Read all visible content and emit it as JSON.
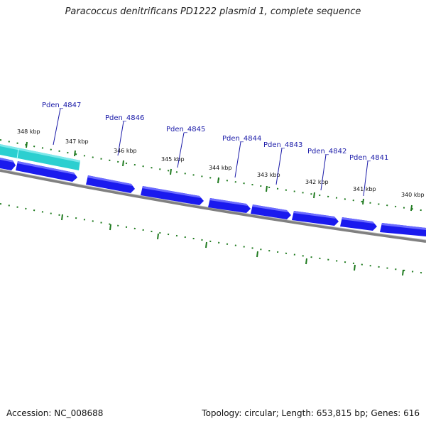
{
  "title": "Paracoccus denitrificans PD1222 plasmid 1, complete sequence",
  "footer": {
    "accession": "Accession: NC_008688",
    "summary": "Topology: circular; Length: 653,815 bp; Genes: 616"
  },
  "colors": {
    "gene_forward": "#1a1aee",
    "gene_highlight": "#2ccfd0",
    "backbone": "#808080",
    "tick": "#1e7a1e",
    "label": "#1a1aa8"
  },
  "genes": [
    {
      "name": "Pden_4847"
    },
    {
      "name": "Pden_4846"
    },
    {
      "name": "Pden_4845"
    },
    {
      "name": "Pden_4844"
    },
    {
      "name": "Pden_4843"
    },
    {
      "name": "Pden_4842"
    },
    {
      "name": "Pden_4841"
    }
  ],
  "kbp_labels": [
    "348 kbp",
    "347 kbp",
    "346 kbp",
    "345 kbp",
    "344 kbp",
    "343 kbp",
    "342 kbp",
    "341 kbp",
    "340 kbp"
  ]
}
